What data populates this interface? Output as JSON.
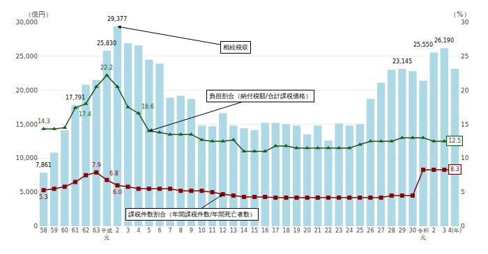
{
  "chart_data": {
    "type": "bar",
    "categories": [
      "58",
      "59",
      "60",
      "61",
      "62",
      "63",
      "平成\n元",
      "2",
      "3",
      "4",
      "5",
      "6",
      "7",
      "8",
      "9",
      "10",
      "11",
      "12",
      "13",
      "14",
      "15",
      "16",
      "17",
      "18",
      "19",
      "20",
      "21",
      "22",
      "23",
      "24",
      "25",
      "26",
      "27",
      "28",
      "29",
      "30",
      "令和\n元",
      "2",
      "3",
      "4(年)"
    ],
    "series": [
      {
        "type": "bar",
        "color": "#add8e6",
        "values": [
          7861,
          10800,
          14100,
          17791,
          20800,
          21500,
          25830,
          29377,
          26900,
          26600,
          24500,
          23900,
          18900,
          19200,
          18700,
          14800,
          14700,
          16600,
          14800,
          14400,
          14100,
          15200,
          15200,
          15000,
          14800,
          13500,
          14800,
          12600,
          15100,
          14800,
          15000,
          18700,
          21100,
          23000,
          23145,
          22800,
          21400,
          25550,
          26190,
          23145
        ],
        "value_labels": [
          "7,861",
          null,
          null,
          "17,791",
          null,
          null,
          "25,830",
          "29,377",
          null,
          null,
          null,
          null,
          null,
          null,
          null,
          null,
          null,
          null,
          null,
          null,
          null,
          null,
          null,
          null,
          null,
          null,
          null,
          null,
          null,
          null,
          null,
          null,
          null,
          null,
          "23,145",
          null,
          null,
          "25,550",
          "26,190",
          null
        ]
      },
      {
        "type": "line",
        "axis": "y2",
        "color": "#1a5c1a",
        "marker": "triangle-up",
        "values": [
          14.3,
          14.3,
          14.5,
          17.4,
          18.0,
          20.5,
          22.2,
          20.5,
          17.5,
          16.6,
          14.0,
          13.8,
          13.5,
          13.5,
          13.5,
          12.7,
          12.5,
          12.5,
          12.7,
          11.0,
          11.0,
          11.0,
          11.8,
          11.8,
          11.5,
          11.5,
          11.5,
          11.5,
          11.5,
          11.5,
          12.0,
          12.5,
          12.5,
          12.5,
          13.0,
          13.0,
          13.0,
          12.5,
          12.5,
          12.5
        ],
        "value_labels": [
          "14.3",
          null,
          null,
          "17.4",
          null,
          null,
          "22.2",
          null,
          null,
          "16.6",
          null,
          null,
          null,
          null,
          null,
          null,
          null,
          null,
          null,
          null,
          null,
          null,
          null,
          null,
          null,
          null,
          null,
          null,
          null,
          null,
          null,
          null,
          null,
          null,
          null,
          null,
          null,
          null,
          null,
          "12.5"
        ]
      },
      {
        "type": "line",
        "axis": "y2",
        "color": "#8b0000",
        "marker": "square",
        "values": [
          5.3,
          5.5,
          5.8,
          6.5,
          7.5,
          7.9,
          6.8,
          6.0,
          5.8,
          5.5,
          5.5,
          5.5,
          5.5,
          5.2,
          5.2,
          5.2,
          5.0,
          4.7,
          4.5,
          4.3,
          4.3,
          4.3,
          4.2,
          4.2,
          4.2,
          4.2,
          4.2,
          4.2,
          4.2,
          4.2,
          4.2,
          4.2,
          4.2,
          4.5,
          4.5,
          4.5,
          8.3,
          8.3,
          8.3,
          8.3
        ],
        "value_labels": [
          "5.3",
          null,
          null,
          null,
          null,
          "7.9",
          "6.8",
          "6.0",
          null,
          null,
          null,
          null,
          null,
          null,
          null,
          null,
          null,
          null,
          null,
          null,
          null,
          null,
          null,
          null,
          null,
          null,
          null,
          null,
          null,
          null,
          null,
          null,
          null,
          null,
          null,
          null,
          null,
          null,
          null,
          "8.3"
        ]
      }
    ],
    "ylabel": "（億円）",
    "y2label": "（%）",
    "ylim": [
      0,
      30000
    ],
    "yticks": [
      0,
      {
        "value": 5000,
        "label": "5,000"
      },
      {
        "value": 10000,
        "label": "10,000"
      },
      {
        "value": 15000,
        "label": "15,000"
      },
      {
        "value": 20000,
        "label": "20,000"
      },
      {
        "value": 25000,
        "label": "25,000"
      },
      {
        "value": 30000,
        "label": "30,000"
      }
    ],
    "y2lim": [
      0,
      30
    ],
    "y2ticks": [
      0,
      5,
      10,
      15,
      20,
      25,
      30
    ],
    "grid": true,
    "annotations": [
      {
        "text": "相続税収",
        "series": 0,
        "index": 7
      },
      {
        "text": "負担割合（納付税額/合計課税価格）",
        "series": 1,
        "index": 10
      },
      {
        "text": "課税件数割合（年間課税件数/年間死亡者数）",
        "series": 2,
        "index": 17
      }
    ]
  }
}
